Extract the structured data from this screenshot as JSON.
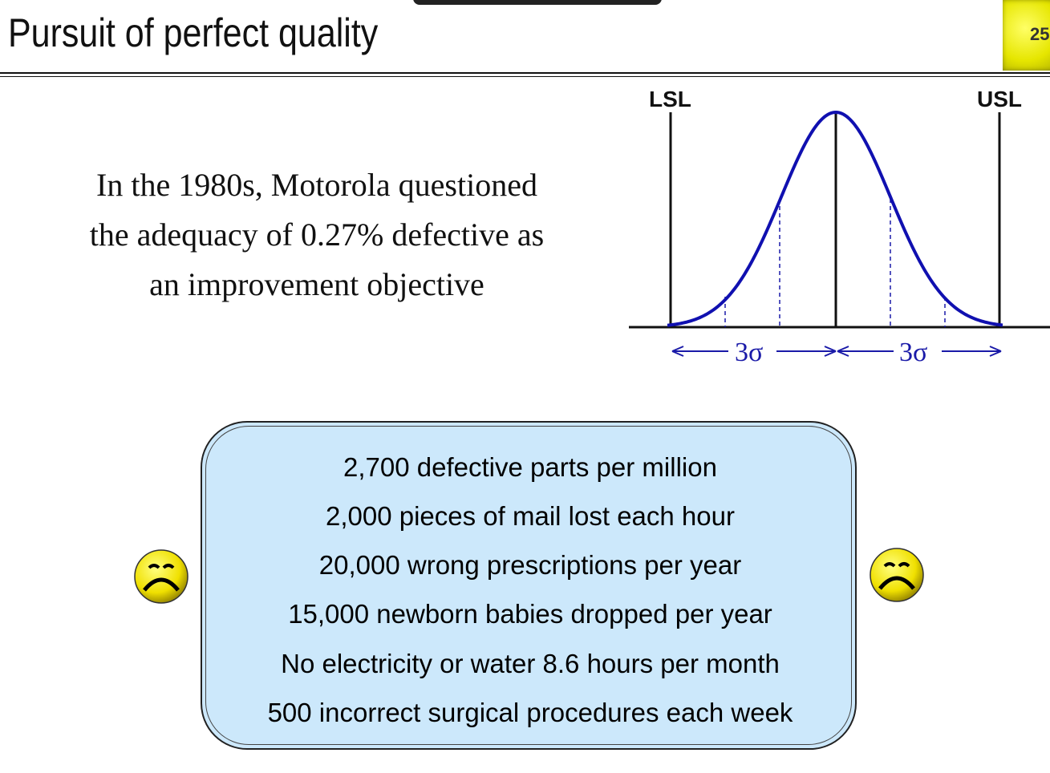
{
  "title": "Pursuit of perfect quality",
  "page_number": "25",
  "intro_lines": [
    "In the 1980s, Motorola questioned",
    "the adequacy of 0.27% defective as",
    "an improvement objective"
  ],
  "diagram": {
    "lsl_label": "LSL",
    "usl_label": "USL",
    "left_span_label": "3σ",
    "right_span_label": "3σ",
    "curve_color": "#1010b0"
  },
  "facts": [
    "2,700 defective parts per million",
    "2,000 pieces of mail lost each hour",
    "20,000 wrong prescriptions per year",
    "15,000 newborn babies dropped per year",
    "No electricity or water 8.6 hours per month",
    "500 incorrect surgical procedures each week"
  ],
  "icons": {
    "left_face": "sad-face-icon",
    "right_face": "sad-face-icon"
  }
}
